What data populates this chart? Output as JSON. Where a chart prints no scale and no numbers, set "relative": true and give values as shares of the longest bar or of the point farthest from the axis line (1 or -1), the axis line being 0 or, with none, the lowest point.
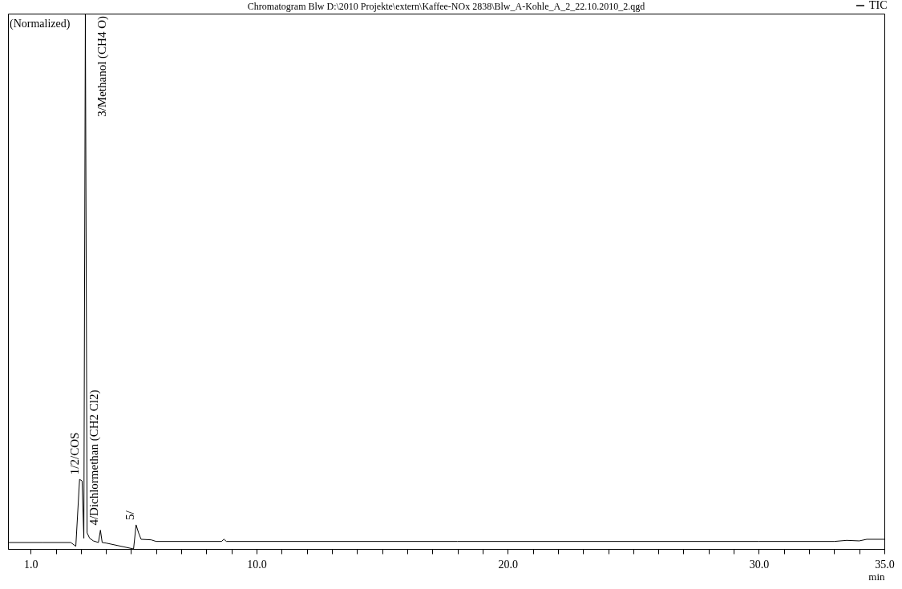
{
  "chart_data": {
    "type": "line",
    "title": "Chromatogram Blw D:\\2010 Projekte\\extern\\Kaffee-NOx 2838\\Blw_A-Kohle_A_2_22.10.2010_2.qgd",
    "xlabel": "min",
    "ylabel": "(Normalized)",
    "relative": true,
    "legend": "top right",
    "grid": false,
    "xlim": [
      0.1,
      35
    ],
    "xticks": [
      {
        "value": 1,
        "label": "1.0"
      },
      {
        "value": 2,
        "label": null
      },
      {
        "value": 3,
        "label": null
      },
      {
        "value": 4,
        "label": null
      },
      {
        "value": 5,
        "label": null
      },
      {
        "value": 6,
        "label": null
      },
      {
        "value": 7,
        "label": null
      },
      {
        "value": 8,
        "label": null
      },
      {
        "value": 9,
        "label": null
      },
      {
        "value": 10,
        "label": "10.0"
      },
      {
        "value": 11,
        "label": null
      },
      {
        "value": 12,
        "label": null
      },
      {
        "value": 13,
        "label": null
      },
      {
        "value": 14,
        "label": null
      },
      {
        "value": 15,
        "label": null
      },
      {
        "value": 16,
        "label": null
      },
      {
        "value": 17,
        "label": null
      },
      {
        "value": 18,
        "label": null
      },
      {
        "value": 19,
        "label": null
      },
      {
        "value": 20,
        "label": "20.0"
      },
      {
        "value": 21,
        "label": null
      },
      {
        "value": 22,
        "label": null
      },
      {
        "value": 23,
        "label": null
      },
      {
        "value": 24,
        "label": null
      },
      {
        "value": 25,
        "label": null
      },
      {
        "value": 26,
        "label": null
      },
      {
        "value": 27,
        "label": null
      },
      {
        "value": 28,
        "label": null
      },
      {
        "value": 29,
        "label": null
      },
      {
        "value": 30,
        "label": "30.0"
      },
      {
        "value": 31,
        "label": null
      },
      {
        "value": 32,
        "label": null
      },
      {
        "value": 33,
        "label": null
      },
      {
        "value": 34,
        "label": null
      },
      {
        "value": 35,
        "label": "35.0"
      }
    ],
    "x": [
      0.1,
      1.5,
      2.6,
      2.8,
      2.95,
      3.05,
      3.12,
      3.18,
      3.25,
      3.35,
      3.5,
      3.7,
      3.78,
      3.85,
      4.0,
      5.1,
      5.2,
      5.3,
      5.4,
      5.8,
      6.0,
      8.6,
      8.7,
      8.8,
      18,
      30,
      33,
      33.5,
      34,
      34.3,
      35
    ],
    "series": [
      {
        "name": "TIC",
        "color": "#000000",
        "values": [
          0.012,
          0.012,
          0.012,
          0.005,
          0.13,
          0.127,
          0.02,
          1.0,
          0.03,
          0.02,
          0.015,
          0.012,
          0.035,
          0.012,
          0.011,
          0.0,
          0.045,
          0.03,
          0.018,
          0.017,
          0.014,
          0.014,
          0.018,
          0.014,
          0.014,
          0.014,
          0.014,
          0.016,
          0.015,
          0.018,
          0.018
        ]
      }
    ],
    "annotations": [
      {
        "text": "1/2/COS",
        "x": 3.0,
        "y": 0.13
      },
      {
        "text": "3/Methanol (CH4 O)",
        "x": 3.18,
        "y": 1.0
      },
      {
        "text": "4/Dichlormethan (CH2 Cl2)",
        "x": 3.78,
        "y": 0.035
      },
      {
        "text": "5/",
        "x": 5.2,
        "y": 0.045
      }
    ]
  }
}
